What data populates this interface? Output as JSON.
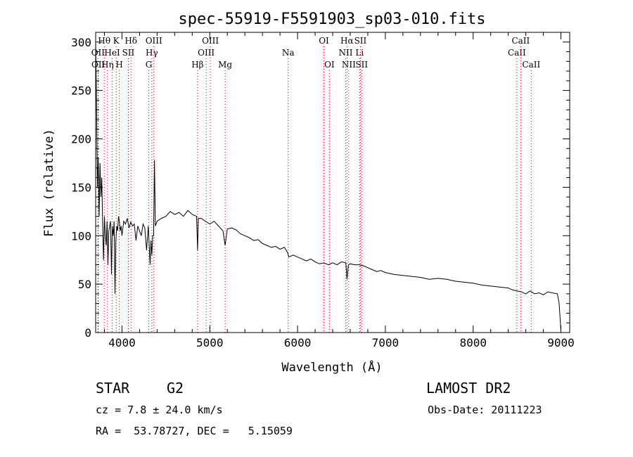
{
  "chart_data": {
    "type": "line",
    "title": "spec-55919-F5591903_sp03-010.fits",
    "xlabel": "Wavelength (Å)",
    "ylabel": "Flux (relative)",
    "xlim": [
      3700,
      9100
    ],
    "ylim": [
      0,
      310
    ],
    "x_ticks": [
      4000,
      5000,
      6000,
      7000,
      8000,
      9000
    ],
    "y_ticks": [
      0,
      50,
      100,
      150,
      200,
      250,
      300
    ],
    "grid": false,
    "line_color": "#000000",
    "marker_color": "#cc0000",
    "series": [
      {
        "x": [
          3700,
          3710,
          3720,
          3730,
          3740,
          3750,
          3760,
          3770,
          3780,
          3790,
          3800,
          3810,
          3820,
          3830,
          3840,
          3850,
          3860,
          3870,
          3880,
          3890,
          3900,
          3910,
          3920,
          3930,
          3940,
          3950,
          3960,
          3970,
          3980,
          3990,
          4000,
          4020,
          4040,
          4060,
          4080,
          4100,
          4120,
          4140,
          4160,
          4180,
          4200,
          4220,
          4240,
          4260,
          4280,
          4300,
          4320,
          4330,
          4340,
          4350,
          4360,
          4370,
          4380,
          4400,
          4450,
          4500,
          4550,
          4600,
          4650,
          4700,
          4750,
          4800,
          4850,
          4861,
          4870,
          4900,
          4950,
          5000,
          5050,
          5100,
          5150,
          5175,
          5200,
          5250,
          5300,
          5350,
          5400,
          5450,
          5500,
          5550,
          5600,
          5650,
          5700,
          5750,
          5800,
          5850,
          5890,
          5900,
          5950,
          6000,
          6050,
          6100,
          6150,
          6200,
          6250,
          6300,
          6350,
          6400,
          6450,
          6500,
          6550,
          6563,
          6580,
          6600,
          6650,
          6700,
          6750,
          6800,
          6850,
          6900,
          6950,
          7000,
          7100,
          7200,
          7300,
          7400,
          7500,
          7600,
          7700,
          7800,
          7900,
          8000,
          8100,
          8200,
          8300,
          8400,
          8450,
          8500,
          8550,
          8600,
          8650,
          8700,
          8750,
          8800,
          8850,
          8900,
          8960,
          8980,
          9000
        ],
        "values": [
          300,
          240,
          150,
          180,
          120,
          175,
          140,
          160,
          110,
          75,
          120,
          100,
          90,
          115,
          70,
          105,
          110,
          115,
          60,
          110,
          100,
          115,
          40,
          95,
          110,
          105,
          120,
          115,
          105,
          110,
          100,
          115,
          112,
          118,
          108,
          114,
          110,
          112,
          95,
          110,
          105,
          100,
          112,
          108,
          85,
          110,
          70,
          95,
          80,
          100,
          100,
          178,
          110,
          115,
          118,
          120,
          125,
          122,
          124,
          120,
          126,
          122,
          120,
          85,
          118,
          118,
          115,
          112,
          115,
          110,
          105,
          90,
          107,
          108,
          106,
          102,
          100,
          98,
          95,
          96,
          92,
          90,
          88,
          89,
          86,
          88,
          82,
          78,
          80,
          78,
          76,
          74,
          76,
          73,
          71,
          72,
          70,
          72,
          70,
          73,
          72,
          55,
          70,
          71,
          70,
          70,
          69,
          67,
          65,
          63,
          64,
          62,
          60,
          59,
          58,
          57,
          55,
          56,
          55,
          53,
          52,
          51,
          49,
          48,
          47,
          46,
          44,
          43,
          42,
          40,
          43,
          40,
          41,
          39,
          42,
          41,
          40,
          30,
          2
        ],
        "smooth": false
      }
    ],
    "lines": [
      {
        "label": "OII",
        "x": 3727,
        "row": 1
      },
      {
        "label": "OII",
        "x": 3729,
        "row": 2
      },
      {
        "label": "Hθ",
        "x": 3798,
        "row": 0
      },
      {
        "label": "Hη",
        "x": 3835,
        "row": 2
      },
      {
        "label": "HeI",
        "x": 3889,
        "row": 1
      },
      {
        "label": "K",
        "x": 3934,
        "row": 0
      },
      {
        "label": "H",
        "x": 3969,
        "row": 2
      },
      {
        "label": "SII",
        "x": 4072,
        "row": 1
      },
      {
        "label": "Hδ",
        "x": 4102,
        "row": 0
      },
      {
        "label": "G",
        "x": 4305,
        "row": 2
      },
      {
        "label": "Hγ",
        "x": 4340,
        "row": 1
      },
      {
        "label": "OIII",
        "x": 4363,
        "row": 0
      },
      {
        "label": "Hβ",
        "x": 4861,
        "row": 2
      },
      {
        "label": "OIII",
        "x": 4959,
        "row": 1
      },
      {
        "label": "OIII",
        "x": 5007,
        "row": 0
      },
      {
        "label": "Mg",
        "x": 5175,
        "row": 2
      },
      {
        "label": "Na",
        "x": 5893,
        "row": 1
      },
      {
        "label": "OI",
        "x": 6300,
        "row": 0
      },
      {
        "label": "OI",
        "x": 6363,
        "row": 2
      },
      {
        "label": "NII",
        "x": 6548,
        "row": 1
      },
      {
        "label": "Hα",
        "x": 6563,
        "row": 0
      },
      {
        "label": "NII",
        "x": 6583,
        "row": 2
      },
      {
        "label": "Li",
        "x": 6707,
        "row": 1
      },
      {
        "label": "SII",
        "x": 6716,
        "row": 0
      },
      {
        "label": "SII",
        "x": 6731,
        "row": 2
      },
      {
        "label": "CaII",
        "x": 8498,
        "row": 1
      },
      {
        "label": "CaII",
        "x": 8542,
        "row": 0
      },
      {
        "label": "CaII",
        "x": 8662,
        "row": 2
      }
    ]
  },
  "info": {
    "class": "STAR",
    "subclass": "G2",
    "survey": "LAMOST DR2",
    "cz": "cz = 7.8 ± 24.0 km/s",
    "obs_date": "Obs-Date: 20111223",
    "radec": "RA =  53.78727, DEC =   5.15059"
  }
}
